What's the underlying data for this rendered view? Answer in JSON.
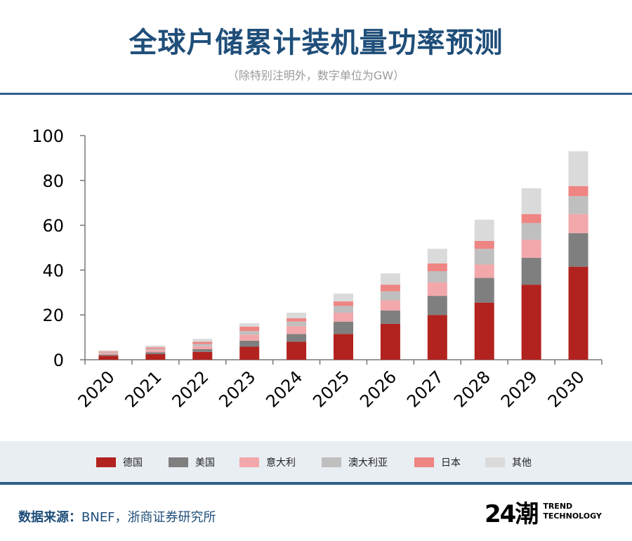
{
  "header": {
    "title": "全球户储累计装机量功率预测",
    "subtitle": "（除特别注明外，数字单位为GW）"
  },
  "chart_data": {
    "type": "bar",
    "stacked": true,
    "categories": [
      "2020",
      "2021",
      "2022",
      "2023",
      "2024",
      "2025",
      "2026",
      "2027",
      "2028",
      "2029",
      "2030"
    ],
    "ylim": [
      0,
      100
    ],
    "yticks": [
      0,
      20,
      40,
      60,
      80,
      100
    ],
    "series": [
      {
        "name": "德国",
        "color": "#b2231f",
        "values": [
          1.8,
          2.5,
          3.5,
          5.8,
          8,
          11.5,
          16,
          20,
          25.5,
          33.5,
          41.5
        ]
      },
      {
        "name": "美国",
        "color": "#7f7f7f",
        "values": [
          0.5,
          0.8,
          1.2,
          2.7,
          3.5,
          5.5,
          6,
          8.5,
          11,
          12,
          15
        ]
      },
      {
        "name": "意大利",
        "color": "#f2a7aa",
        "values": [
          0.6,
          0.9,
          1.3,
          2.7,
          3.5,
          4,
          4.5,
          6,
          6,
          8,
          8.5
        ]
      },
      {
        "name": "澳大利亚",
        "color": "#bfbfbf",
        "values": [
          0.4,
          0.6,
          1,
          1.6,
          2,
          3,
          4,
          5,
          7,
          7.5,
          8
        ]
      },
      {
        "name": "日本",
        "color": "#ee8583",
        "values": [
          0.4,
          0.7,
          1,
          2,
          1.5,
          2,
          3,
          3.5,
          3.5,
          4,
          4.5
        ]
      },
      {
        "name": "其他",
        "color": "#dadada",
        "values": [
          0.5,
          0.8,
          1.3,
          1.5,
          2.5,
          3.5,
          5,
          6.5,
          9.5,
          11.5,
          15.5
        ]
      }
    ]
  },
  "footer": {
    "source_label": "数据来源：",
    "source_text": "BNEF，浙商证券研究所",
    "logo_mark": "24潮",
    "logo_line1": "TREND",
    "logo_line2": "TECHNOLOGY"
  }
}
